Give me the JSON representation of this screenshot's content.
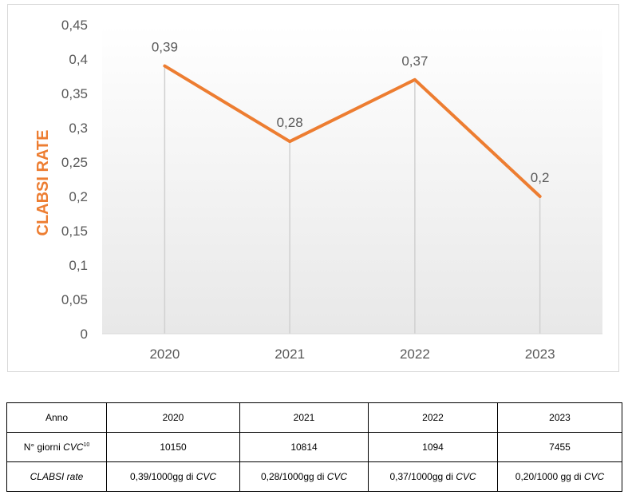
{
  "chart_data": {
    "type": "line",
    "title": "",
    "xlabel": "",
    "ylabel": "CLABSI RATE",
    "categories": [
      "2020",
      "2021",
      "2022",
      "2023"
    ],
    "series": [
      {
        "values": [
          0.39,
          0.28,
          0.37,
          0.2
        ]
      }
    ],
    "data_labels": [
      "0,39",
      "0,28",
      "0,37",
      "0,2"
    ],
    "y_ticks": [
      0,
      0.05,
      0.1,
      0.15,
      0.2,
      0.25,
      0.3,
      0.35,
      0.4,
      0.45
    ],
    "y_tick_labels": [
      "0",
      "0,05",
      "0,1",
      "0,15",
      "0,2",
      "0,25",
      "0,3",
      "0,35",
      "0,4",
      "0,45"
    ],
    "ylim": [
      0,
      0.45
    ],
    "line_color": "#ed7d31",
    "drop_lines": true,
    "grid": false,
    "plot_background": "gradient-white-to-light-gray"
  },
  "table": {
    "header": {
      "label": "Anno",
      "years": [
        "2020",
        "2021",
        "2022",
        "2023"
      ]
    },
    "days_row": {
      "label": "N° giorni ",
      "label_italic": "CVC",
      "label_sup": "10",
      "values": [
        "10150",
        "10814",
        "1094",
        "7455"
      ]
    },
    "rate_row": {
      "label": "CLABSI rate",
      "cells": [
        {
          "text": "0,39/1000gg di ",
          "italic": "CVC"
        },
        {
          "text": "0,28/1000gg di ",
          "italic": "CVC"
        },
        {
          "text": "0,37/1000gg di ",
          "italic": "CVC"
        },
        {
          "text": "0,20/1000 gg di ",
          "italic": "CVC"
        }
      ]
    }
  }
}
